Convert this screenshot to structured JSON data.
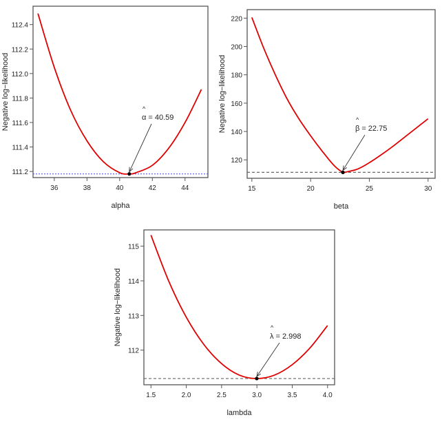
{
  "chart_data": [
    {
      "type": "line",
      "xlabel": "alpha",
      "ylabel": "Negative log−likelihood",
      "xlim": [
        34.7,
        45.4
      ],
      "ylim": [
        111.15,
        112.55
      ],
      "xticks": [
        "36",
        "38",
        "40",
        "42",
        "44"
      ],
      "yticks": [
        "111.2",
        "111.4",
        "111.6",
        "111.8",
        "112.0",
        "112.2",
        "112.4"
      ],
      "x": [
        35,
        36,
        37,
        38,
        39,
        40,
        40.59,
        41,
        42,
        43,
        44,
        45
      ],
      "y": [
        112.49,
        112.05,
        111.7,
        111.45,
        111.28,
        111.19,
        111.18,
        111.19,
        111.25,
        111.39,
        111.6,
        111.87
      ],
      "reference_line": {
        "y": 111.18,
        "style": "dotted",
        "color": "#5555ee"
      },
      "estimate": {
        "x": 40.59,
        "y": 111.18,
        "symbol": "α",
        "hat": "^",
        "label": "= 40.59"
      },
      "curve_color": "#e00000",
      "grid": false
    },
    {
      "type": "line",
      "xlabel": "beta",
      "ylabel": "Negative log−likelihood",
      "xlim": [
        14.6,
        30.6
      ],
      "ylim": [
        107,
        226
      ],
      "xticks": [
        "15",
        "20",
        "25",
        "30"
      ],
      "yticks": [
        "120",
        "140",
        "160",
        "180",
        "200",
        "220"
      ],
      "x": [
        15,
        16,
        17,
        18,
        19,
        20,
        21,
        22,
        22.75,
        23,
        24,
        25,
        26,
        27,
        28,
        29,
        30
      ],
      "y": [
        220.5,
        199,
        180,
        163,
        149,
        137,
        126,
        116,
        111.18,
        111.4,
        113.5,
        118,
        123.5,
        129.5,
        136,
        142.5,
        149
      ],
      "reference_line": {
        "y": 111.18,
        "style": "dashed",
        "color": "#666666"
      },
      "estimate": {
        "x": 22.75,
        "y": 111.18,
        "symbol": "β",
        "hat": "^",
        "label": "= 22.75"
      },
      "curve_color": "#e00000",
      "grid": false
    },
    {
      "type": "line",
      "xlabel": "lambda",
      "ylabel": "Negative log−likelihood",
      "xlim": [
        1.4,
        4.1
      ],
      "ylim": [
        111.0,
        115.47
      ],
      "xticks": [
        "1.5",
        "2.0",
        "2.5",
        "3.0",
        "3.5",
        "4.0"
      ],
      "yticks": [
        "112",
        "113",
        "114",
        "115"
      ],
      "x": [
        1.5,
        1.75,
        2.0,
        2.25,
        2.5,
        2.75,
        2.998,
        3.25,
        3.5,
        3.75,
        4.0
      ],
      "y": [
        115.32,
        114.0,
        112.95,
        112.16,
        111.61,
        111.28,
        111.18,
        111.28,
        111.58,
        112.06,
        112.71
      ],
      "reference_line": {
        "y": 111.18,
        "style": "dashed",
        "color": "#666666"
      },
      "estimate": {
        "x": 2.998,
        "y": 111.18,
        "symbol": "λ",
        "hat": "^",
        "label": "= 2.998"
      },
      "curve_color": "#e00000",
      "grid": false
    }
  ]
}
